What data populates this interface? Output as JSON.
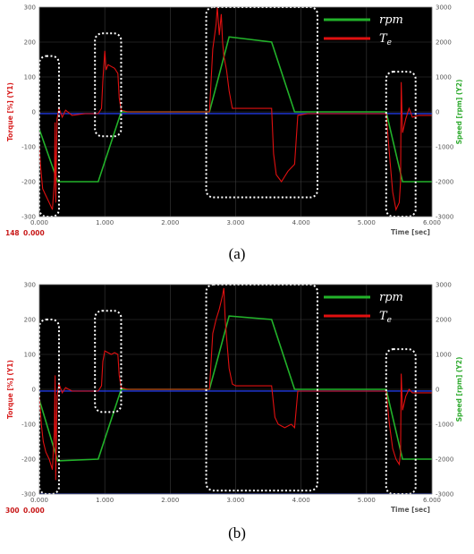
{
  "chart_data": [
    {
      "type": "line",
      "panel": "a",
      "caption": "(a)",
      "xlabel": "Time [sec]",
      "ylabel_left": "Torque [%] (Y1)",
      "ylabel_right": "Speed [rpm] (Y2)",
      "xlim": [
        0,
        6
      ],
      "ylim_left": [
        -300,
        300
      ],
      "ylim_right": [
        -3000,
        3000
      ],
      "x_ticks": [
        "0.000",
        "1.000",
        "2.000",
        "3.000",
        "4.000",
        "5.000",
        "6.000"
      ],
      "y_left_ticks": [
        "300",
        "200",
        "100",
        "0",
        "-100",
        "-200",
        "-300"
      ],
      "y_right_ticks": [
        "3000",
        "2000",
        "1000",
        "0",
        "-1000",
        "-2000",
        "-3000"
      ],
      "corner_labels": [
        "148",
        "0.000"
      ],
      "legend": [
        "rpm",
        "T_e"
      ],
      "legend_position": "top-right",
      "grid": true,
      "background": "#000000",
      "colors": {
        "rpm": "#22b22a",
        "torque": "#e01010",
        "ref": "#2038e0",
        "box": "#ffffff"
      },
      "speed_series": {
        "name": "rpm",
        "x": [
          0,
          0.28,
          0.9,
          1.25,
          2.6,
          2.9,
          3.55,
          3.9,
          5.3,
          5.55,
          6.0
        ],
        "y": [
          -500,
          -2000,
          -2000,
          0,
          0,
          2150,
          2000,
          0,
          0,
          -2000,
          -2000
        ]
      },
      "torque_series": {
        "name": "T_e",
        "segments": [
          {
            "x": [
              0.0,
              0.02,
              0.05,
              0.1,
              0.15,
              0.2,
              0.23,
              0.24,
              0.25,
              0.27,
              0.3,
              0.35,
              0.4,
              0.5,
              0.7,
              0.9
            ],
            "y": [
              -100,
              -160,
              -220,
              -240,
              -260,
              -280,
              -200,
              -30,
              -260,
              -20,
              10,
              -15,
              5,
              -10,
              -5,
              -5
            ]
          },
          {
            "x": [
              0.9,
              0.95,
              0.97,
              1.0,
              1.02,
              1.05,
              1.1,
              1.15,
              1.2,
              1.22,
              1.25,
              1.35,
              1.6,
              2.0,
              2.6
            ],
            "y": [
              -5,
              10,
              90,
              175,
              120,
              135,
              130,
              125,
              110,
              40,
              5,
              0,
              0,
              0,
              0
            ]
          },
          {
            "x": [
              2.6,
              2.65,
              2.7,
              2.72,
              2.75,
              2.78,
              2.8,
              2.82,
              2.86,
              2.9,
              2.95,
              3.0,
              3.3,
              3.55,
              3.58,
              3.62,
              3.7,
              3.8,
              3.9,
              3.95,
              4.1,
              4.5,
              5.3
            ],
            "y": [
              0,
              180,
              250,
              300,
              220,
              280,
              200,
              160,
              120,
              60,
              10,
              10,
              10,
              10,
              -120,
              -180,
              -200,
              -170,
              -150,
              -10,
              -5,
              -5,
              -5
            ]
          },
          {
            "x": [
              5.3,
              5.35,
              5.4,
              5.45,
              5.5,
              5.52,
              5.53,
              5.55,
              5.6,
              5.65,
              5.7,
              5.8,
              6.0
            ],
            "y": [
              -5,
              -120,
              -230,
              -280,
              -260,
              -200,
              85,
              -60,
              -20,
              10,
              -15,
              -10,
              -10
            ]
          }
        ]
      },
      "reference_lines": [
        {
          "y_left": -5,
          "color": "#2038e0"
        }
      ],
      "highlight_boxes": [
        {
          "x": [
            0.0,
            0.3
          ],
          "y": [
            -300,
            160
          ]
        },
        {
          "x": [
            0.85,
            1.25
          ],
          "y": [
            -70,
            225
          ]
        },
        {
          "x": [
            2.55,
            4.25
          ],
          "y": [
            -245,
            300
          ]
        },
        {
          "x": [
            5.3,
            5.75
          ],
          "y": [
            -300,
            115
          ]
        }
      ]
    },
    {
      "type": "line",
      "panel": "b",
      "caption": "(b)",
      "xlabel": "Time [sec]",
      "ylabel_left": "Torque [%] (Y1)",
      "ylabel_right": "Speed [rpm] (Y2)",
      "xlim": [
        0,
        6
      ],
      "ylim_left": [
        -300,
        300
      ],
      "ylim_right": [
        -3000,
        3000
      ],
      "x_ticks": [
        "0.000",
        "1.000",
        "2.000",
        "3.000",
        "4.000",
        "5.000",
        "6.000"
      ],
      "y_left_ticks": [
        "300",
        "200",
        "100",
        "0",
        "-100",
        "-200",
        "-300"
      ],
      "y_right_ticks": [
        "3000",
        "2000",
        "1000",
        "0",
        "-1000",
        "-2000",
        "-3000"
      ],
      "corner_labels": [
        "300",
        "0.000"
      ],
      "legend": [
        "rpm",
        "T_e"
      ],
      "legend_position": "top-right",
      "grid": true,
      "background": "#000000",
      "colors": {
        "rpm": "#22b22a",
        "torque": "#e01010",
        "ref": "#2038e0",
        "box": "#ffffff"
      },
      "speed_series": {
        "name": "rpm",
        "x": [
          0,
          0.28,
          0.9,
          1.25,
          2.6,
          2.9,
          3.55,
          3.9,
          5.3,
          5.55,
          6.0
        ],
        "y": [
          -300,
          -2050,
          -2000,
          0,
          0,
          2100,
          2000,
          0,
          0,
          -2000,
          -2000
        ]
      },
      "torque_series": {
        "name": "T_e",
        "segments": [
          {
            "x": [
              0.0,
              0.03,
              0.06,
              0.1,
              0.15,
              0.2,
              0.23,
              0.24,
              0.25,
              0.27,
              0.3,
              0.35,
              0.4,
              0.5,
              0.7,
              0.9
            ],
            "y": [
              -20,
              -100,
              -150,
              -180,
              -200,
              -230,
              -120,
              40,
              -260,
              -20,
              15,
              -10,
              5,
              -5,
              -5,
              -5
            ]
          },
          {
            "x": [
              0.9,
              0.95,
              0.97,
              1.0,
              1.05,
              1.1,
              1.15,
              1.2,
              1.22,
              1.25,
              1.35,
              1.6,
              2.0,
              2.6
            ],
            "y": [
              -5,
              10,
              80,
              110,
              105,
              100,
              105,
              100,
              40,
              5,
              0,
              0,
              0,
              0
            ]
          },
          {
            "x": [
              2.6,
              2.65,
              2.7,
              2.75,
              2.8,
              2.82,
              2.84,
              2.86,
              2.9,
              2.95,
              3.0,
              3.3,
              3.55,
              3.6,
              3.65,
              3.75,
              3.85,
              3.9,
              3.95,
              4.1,
              4.5,
              5.3
            ],
            "y": [
              0,
              160,
              200,
              230,
              270,
              290,
              200,
              150,
              60,
              15,
              10,
              10,
              10,
              -80,
              -100,
              -110,
              -100,
              -110,
              -5,
              -5,
              -5,
              -5
            ]
          },
          {
            "x": [
              5.3,
              5.35,
              5.4,
              5.45,
              5.5,
              5.52,
              5.53,
              5.55,
              5.6,
              5.65,
              5.7,
              5.8,
              6.0
            ],
            "y": [
              -5,
              -100,
              -170,
              -200,
              -215,
              -180,
              45,
              -60,
              -20,
              0,
              -10,
              -10,
              -10
            ]
          }
        ]
      },
      "reference_lines": [
        {
          "y_left": -5,
          "color": "#2038e0"
        },
        {
          "y_left": -300,
          "color": "#2038e0"
        }
      ],
      "highlight_boxes": [
        {
          "x": [
            0.0,
            0.3
          ],
          "y": [
            -300,
            200
          ]
        },
        {
          "x": [
            0.85,
            1.25
          ],
          "y": [
            -65,
            225
          ]
        },
        {
          "x": [
            2.55,
            4.25
          ],
          "y": [
            -290,
            300
          ]
        },
        {
          "x": [
            5.3,
            5.75
          ],
          "y": [
            -300,
            115
          ]
        }
      ]
    }
  ]
}
